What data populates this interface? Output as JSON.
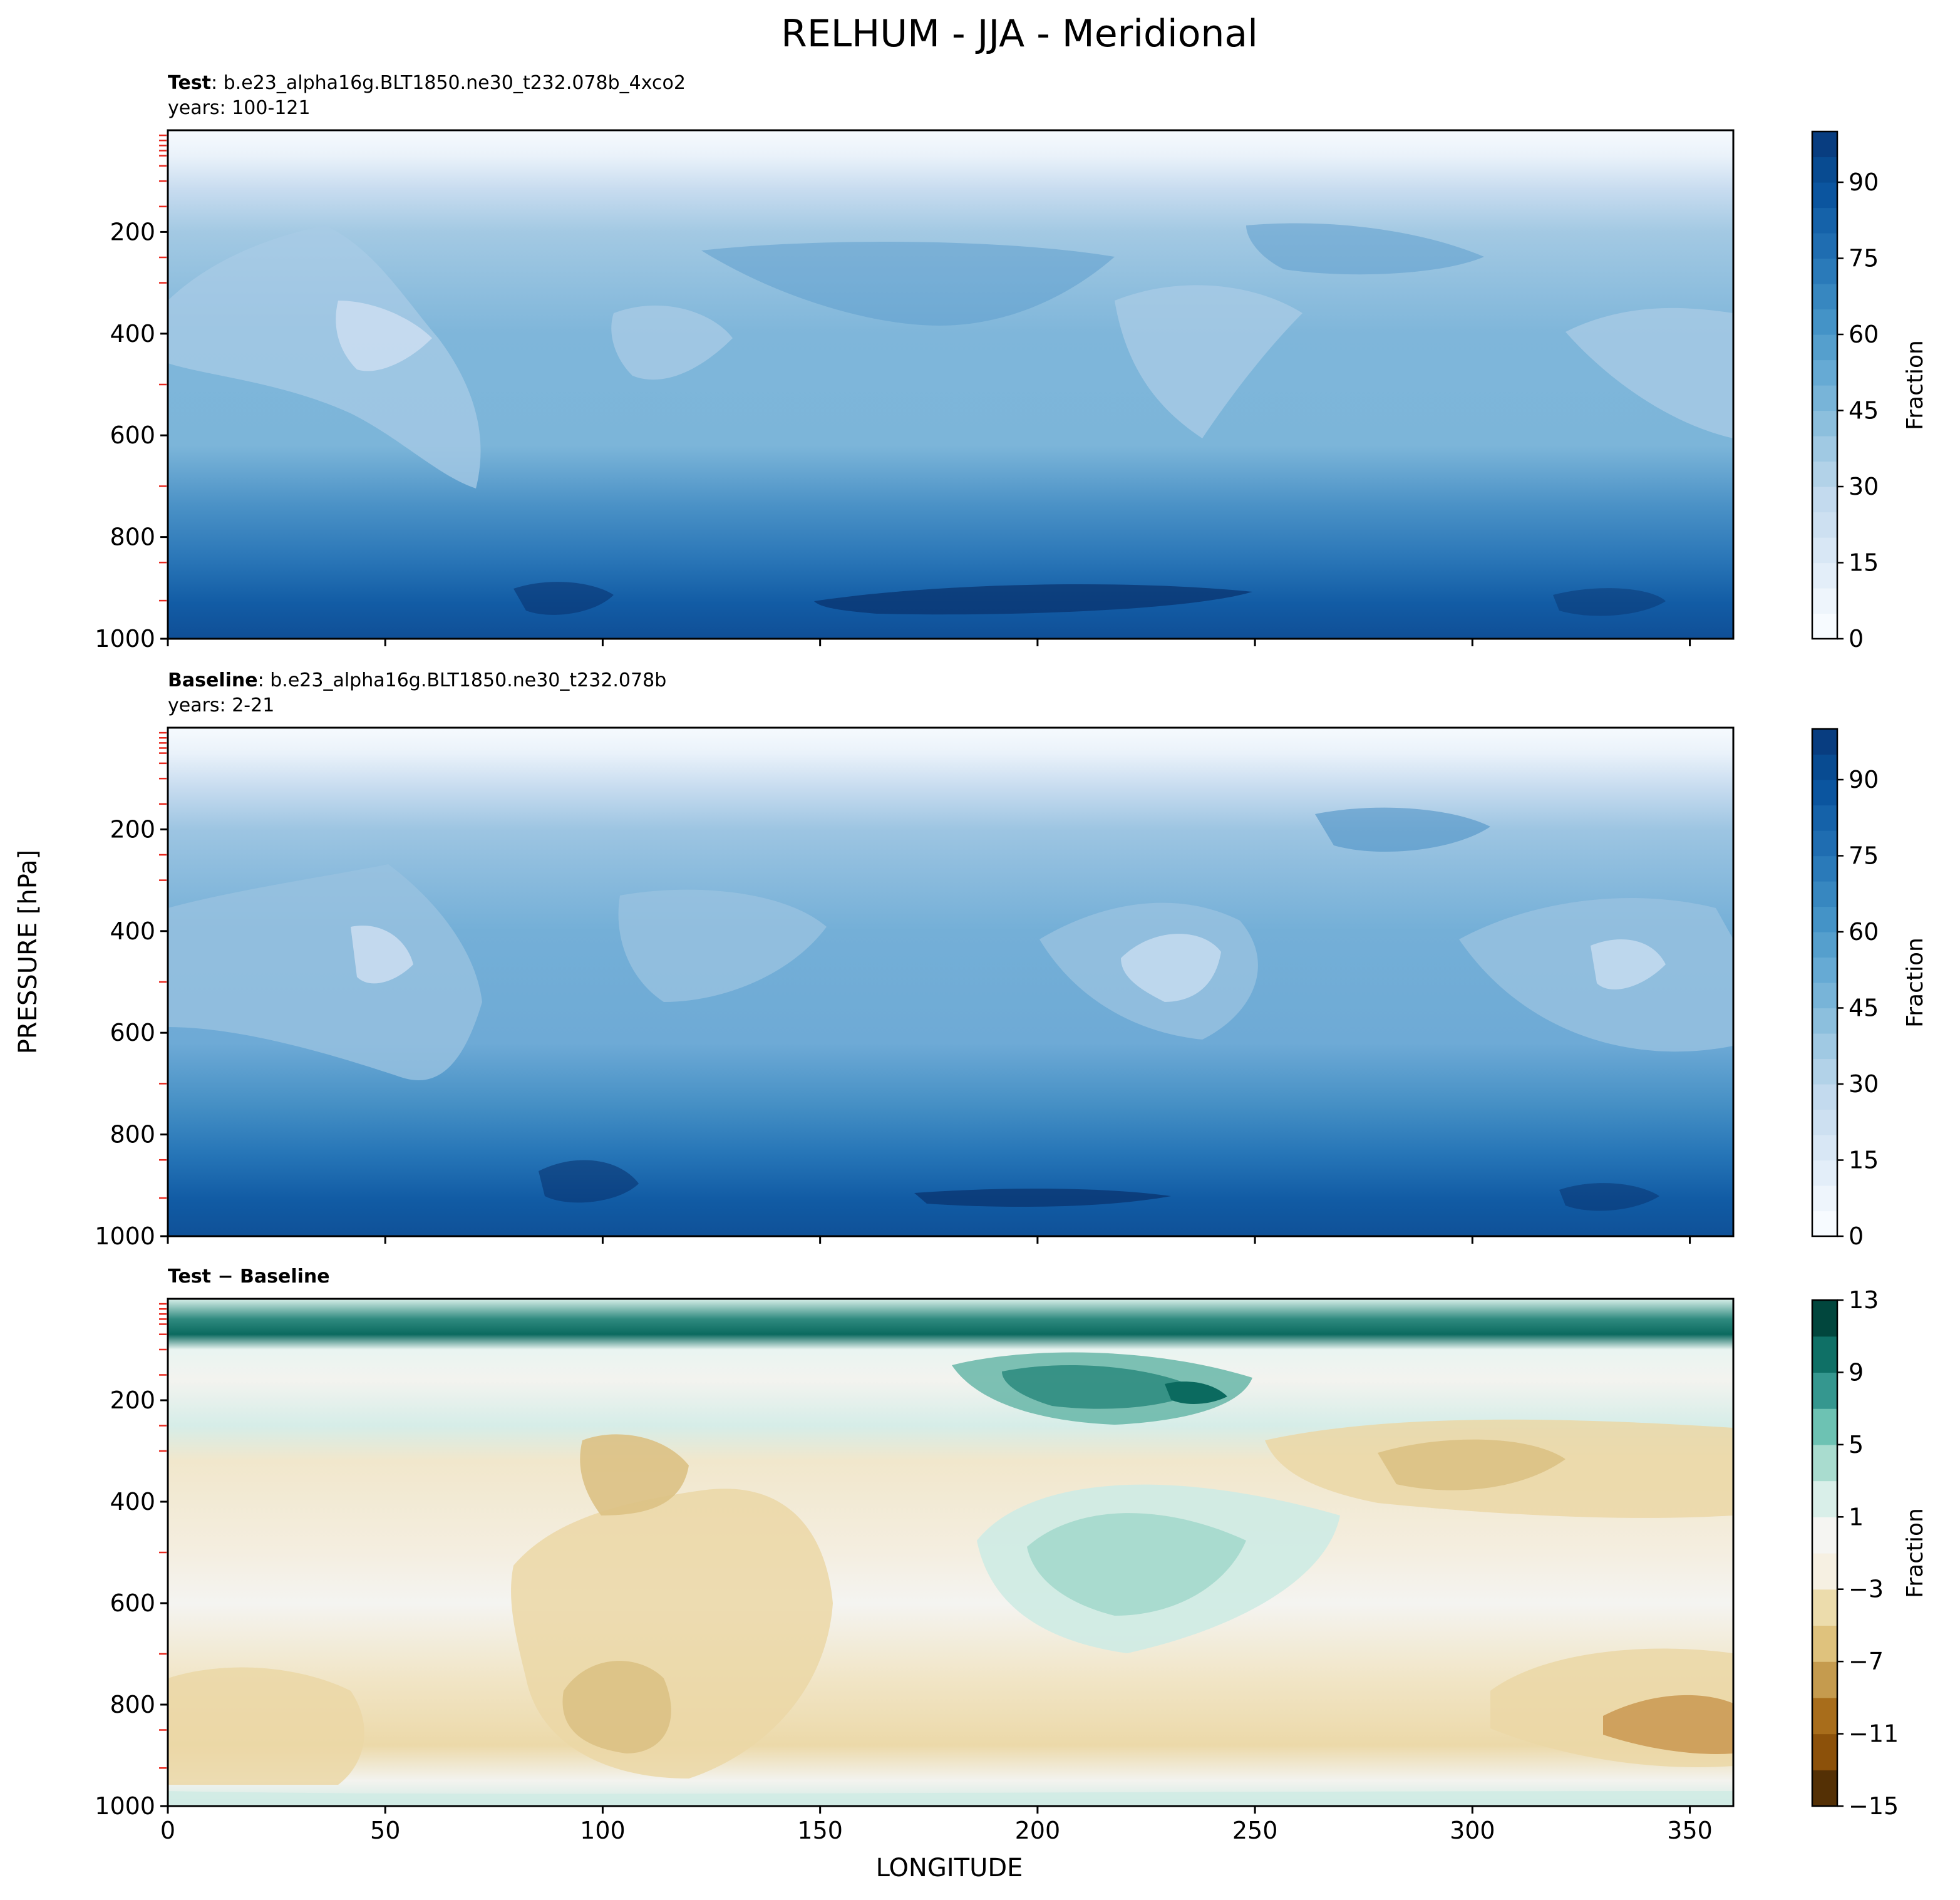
{
  "figure": {
    "title": "RELHUM - JJA - Meridional",
    "ylabel": "PRESSURE [hPa]",
    "xlabel": "LONGITUDE"
  },
  "panels": [
    {
      "id": "test",
      "label_bold": "Test",
      "label_text": ": b.e23_alpha16g.BLT1850.ne30_t232.078b_4xco2",
      "years": "years: 100-121",
      "colorbar_label": "Fraction"
    },
    {
      "id": "baseline",
      "label_bold": "Baseline",
      "label_text": ": b.e23_alpha16g.BLT1850.ne30_t232.078b",
      "years": "years: 2-21",
      "colorbar_label": "Fraction"
    },
    {
      "id": "diff",
      "label_bold": "Test − Baseline",
      "colorbar_label": "Fraction"
    }
  ],
  "chart_data": [
    {
      "type": "heatmap",
      "subtype": "filled-contour",
      "title": "Test : b.e23_alpha16g.BLT1850.ne30_t232.078b_4xco2",
      "variable": "RELHUM",
      "xlabel": "LONGITUDE",
      "ylabel": "PRESSURE [hPa]",
      "xlim": [
        0,
        360
      ],
      "ylim": [
        1000,
        0
      ],
      "x_ticks": [
        "0",
        "50",
        "100",
        "150",
        "200",
        "250",
        "300",
        "350"
      ],
      "y_ticks": [
        "200",
        "400",
        "600",
        "800",
        "1000"
      ],
      "colormap": "Blues",
      "levels": [
        0,
        5,
        10,
        15,
        20,
        25,
        30,
        35,
        40,
        45,
        50,
        55,
        60,
        65,
        70,
        75,
        80,
        85,
        90,
        95,
        100
      ],
      "colorbar_ticks": [
        "0",
        "15",
        "30",
        "45",
        "60",
        "75",
        "90"
      ],
      "colorbar_label": "Fraction",
      "summary": "Near 0-10 above 100 hPa; about 35-60 through the mid troposphere with drier pockets near 40, 110 and 270 longitude at 400 hPa; rising to 85-95 near 900-950 hPa, maximum between 150 and 250 longitude."
    },
    {
      "type": "heatmap",
      "subtype": "filled-contour",
      "title": "Baseline : b.e23_alpha16g.BLT1850.ne30_t232.078b",
      "variable": "RELHUM",
      "xlabel": "LONGITUDE",
      "ylabel": "PRESSURE [hPa]",
      "xlim": [
        0,
        360
      ],
      "ylim": [
        1000,
        0
      ],
      "x_ticks": [
        "0",
        "50",
        "100",
        "150",
        "200",
        "250",
        "300",
        "350"
      ],
      "y_ticks": [
        "200",
        "400",
        "600",
        "800",
        "1000"
      ],
      "colormap": "Blues",
      "levels": [
        0,
        5,
        10,
        15,
        20,
        25,
        30,
        35,
        40,
        45,
        50,
        55,
        60,
        65,
        70,
        75,
        80,
        85,
        90,
        95,
        100
      ],
      "colorbar_ticks": [
        "0",
        "15",
        "30",
        "45",
        "60",
        "75",
        "90"
      ],
      "colorbar_label": "Fraction",
      "summary": "Similar structure to Test: near 0-10 aloft, 35-60 in the mid troposphere with drier pockets near 40, 230 and 330 longitude around 450 hPa, and a moist low-level layer of 85-95 near 900-950 hPa."
    },
    {
      "type": "heatmap",
      "subtype": "filled-contour",
      "title": "Test − Baseline",
      "variable": "RELHUM difference",
      "xlabel": "LONGITUDE",
      "ylabel": "PRESSURE [hPa]",
      "xlim": [
        0,
        360
      ],
      "ylim": [
        1000,
        0
      ],
      "x_ticks": [
        "0",
        "50",
        "100",
        "150",
        "200",
        "250",
        "300",
        "350"
      ],
      "y_ticks": [
        "200",
        "400",
        "600",
        "800",
        "1000"
      ],
      "colormap": "BrBG",
      "levels": [
        -15,
        -13,
        -11,
        -9,
        -7,
        -5,
        -3,
        -1,
        1,
        3,
        5,
        7,
        9,
        11,
        13
      ],
      "colorbar_ticks": [
        "13",
        "9",
        "5",
        "1",
        "−3",
        "−7",
        "−11",
        "−15"
      ],
      "colorbar_label": "Fraction",
      "summary": "Strong positive band (+9 to +13) near 60-80 hPa across all longitudes; positive core (+7 to +11) near 200 hPa around 200-240 longitude and +3 to +5 near 500 hPa around 200-240; negative values (-1 to -7) over much of the mid and lower troposphere, strongest near 850 hPa around 340-355 longitude."
    }
  ]
}
